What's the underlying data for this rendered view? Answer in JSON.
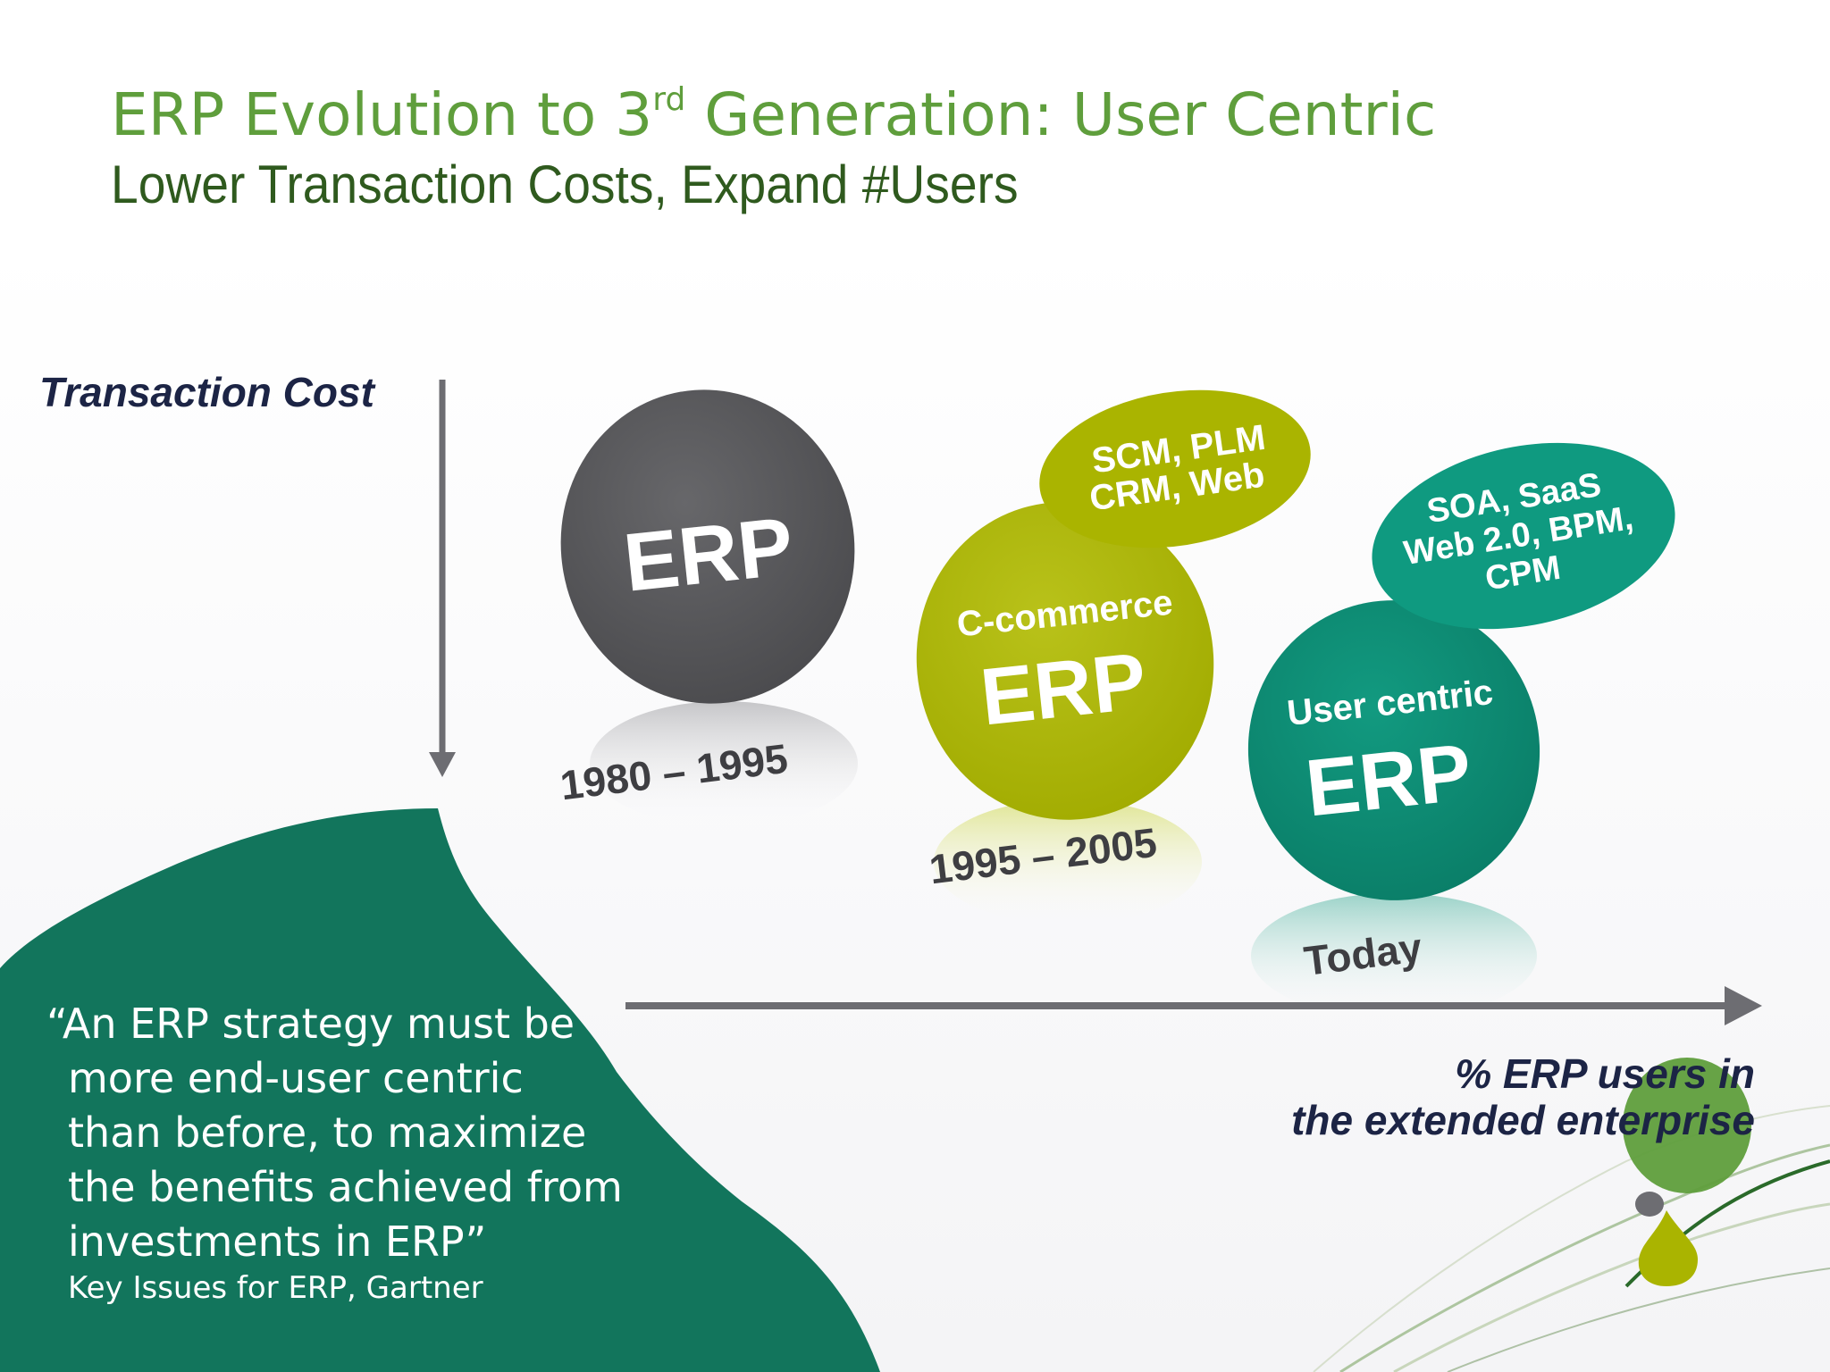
{
  "title": {
    "main_prefix": "ERP Evolution to 3",
    "main_sup": "rd",
    "main_suffix": " Generation: User Centric",
    "subtitle": "Lower Transaction Costs, Expand #Users"
  },
  "axes": {
    "y_label": "Transaction Cost",
    "x_label_line1": "% ERP users in",
    "x_label_line2": "the extended enterprise"
  },
  "stages": [
    {
      "main_label": "ERP",
      "period": "1980 – 1995",
      "color": "#58585b"
    },
    {
      "main_label": "ERP",
      "sub_label": "C-commerce",
      "period": "1995 – 2005",
      "color": "#aab400",
      "bubble_line1": "SCM, PLM",
      "bubble_line2": "CRM, Web"
    },
    {
      "main_label": "ERP",
      "sub_label": "User centric",
      "period": "Today",
      "color": "#0d8a72",
      "bubble_color": "#0f9a80",
      "bubble_line1": "SOA, SaaS",
      "bubble_line2": "Web 2.0, BPM,",
      "bubble_line3": "CPM"
    }
  ],
  "quote": {
    "line1": "“An ERP strategy must be",
    "line2": "more end-user centric",
    "line3": "than before, to maximize",
    "line4": "the benefits achieved from",
    "line5": "investments in ERP”",
    "attribution": "Key Issues for ERP, Gartner"
  },
  "colors": {
    "title": "#5f9e3c",
    "subtitle": "#2f5a1e",
    "axis_text": "#1c2445",
    "quote_blob": "#12755c",
    "arrow": "#6d6d72"
  }
}
